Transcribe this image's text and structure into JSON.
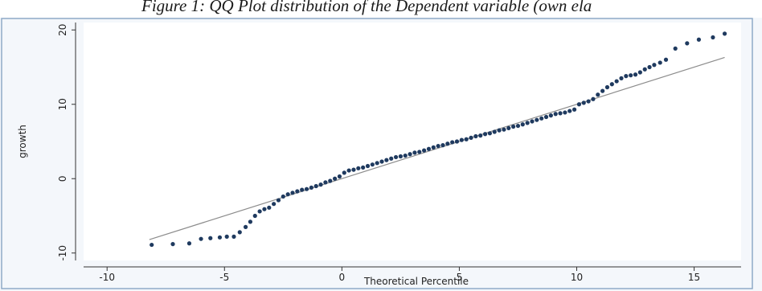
{
  "caption": "Figure 1: QQ Plot distribution of the Dependent variable (own ela",
  "chart_data": {
    "type": "scatter",
    "title": "",
    "xlabel": "Theoretical Percentile",
    "ylabel": "growth",
    "xlim": [
      -11,
      17
    ],
    "ylim": [
      -11,
      21
    ],
    "xticks": [
      -10,
      -5,
      0,
      5,
      10,
      15
    ],
    "yticks": [
      -10,
      0,
      10,
      20
    ],
    "grid": false,
    "colors": {
      "points": "#1f3a5f",
      "reference_line": "#8c8c8c",
      "axes": "#333333",
      "panel_border": "#8faac8",
      "plot_bg": "#ffffff"
    },
    "reference_line": {
      "from": [
        -8.2,
        -8.2
      ],
      "to": [
        16.3,
        16.3
      ]
    },
    "series": [
      {
        "points": [
          [
            -8.1,
            -8.9
          ],
          [
            -7.2,
            -8.8
          ],
          [
            -6.5,
            -8.7
          ],
          [
            -6.0,
            -8.1
          ],
          [
            -5.6,
            -8.0
          ],
          [
            -5.2,
            -7.9
          ],
          [
            -4.9,
            -7.8
          ],
          [
            -4.6,
            -7.8
          ],
          [
            -4.35,
            -7.2
          ],
          [
            -4.1,
            -6.5
          ],
          [
            -3.9,
            -5.8
          ],
          [
            -3.7,
            -5.0
          ],
          [
            -3.5,
            -4.4
          ],
          [
            -3.3,
            -4.1
          ],
          [
            -3.1,
            -3.9
          ],
          [
            -2.9,
            -3.4
          ],
          [
            -2.7,
            -2.9
          ],
          [
            -2.5,
            -2.4
          ],
          [
            -2.3,
            -2.1
          ],
          [
            -2.1,
            -1.9
          ],
          [
            -1.9,
            -1.7
          ],
          [
            -1.7,
            -1.5
          ],
          [
            -1.5,
            -1.4
          ],
          [
            -1.3,
            -1.2
          ],
          [
            -1.1,
            -1.0
          ],
          [
            -0.9,
            -0.8
          ],
          [
            -0.7,
            -0.5
          ],
          [
            -0.5,
            -0.3
          ],
          [
            -0.3,
            0.0
          ],
          [
            -0.1,
            0.3
          ],
          [
            0.1,
            0.8
          ],
          [
            0.3,
            1.1
          ],
          [
            0.5,
            1.2
          ],
          [
            0.7,
            1.4
          ],
          [
            0.9,
            1.5
          ],
          [
            1.1,
            1.7
          ],
          [
            1.3,
            1.9
          ],
          [
            1.5,
            2.1
          ],
          [
            1.7,
            2.3
          ],
          [
            1.9,
            2.5
          ],
          [
            2.1,
            2.7
          ],
          [
            2.3,
            2.9
          ],
          [
            2.5,
            3.0
          ],
          [
            2.7,
            3.1
          ],
          [
            2.9,
            3.3
          ],
          [
            3.1,
            3.5
          ],
          [
            3.3,
            3.6
          ],
          [
            3.5,
            3.8
          ],
          [
            3.7,
            4.0
          ],
          [
            3.9,
            4.2
          ],
          [
            4.1,
            4.4
          ],
          [
            4.3,
            4.5
          ],
          [
            4.5,
            4.7
          ],
          [
            4.7,
            4.9
          ],
          [
            4.9,
            5.0
          ],
          [
            5.1,
            5.2
          ],
          [
            5.3,
            5.3
          ],
          [
            5.5,
            5.5
          ],
          [
            5.7,
            5.7
          ],
          [
            5.9,
            5.8
          ],
          [
            6.1,
            6.0
          ],
          [
            6.3,
            6.1
          ],
          [
            6.5,
            6.3
          ],
          [
            6.7,
            6.5
          ],
          [
            6.9,
            6.6
          ],
          [
            7.1,
            6.8
          ],
          [
            7.3,
            7.0
          ],
          [
            7.5,
            7.1
          ],
          [
            7.7,
            7.3
          ],
          [
            7.9,
            7.5
          ],
          [
            8.1,
            7.7
          ],
          [
            8.3,
            7.9
          ],
          [
            8.5,
            8.1
          ],
          [
            8.7,
            8.3
          ],
          [
            8.9,
            8.5
          ],
          [
            9.1,
            8.7
          ],
          [
            9.3,
            8.8
          ],
          [
            9.5,
            8.9
          ],
          [
            9.7,
            9.1
          ],
          [
            9.9,
            9.3
          ],
          [
            10.1,
            10.0
          ],
          [
            10.3,
            10.2
          ],
          [
            10.5,
            10.4
          ],
          [
            10.7,
            10.7
          ],
          [
            10.9,
            11.3
          ],
          [
            11.1,
            11.8
          ],
          [
            11.3,
            12.3
          ],
          [
            11.5,
            12.7
          ],
          [
            11.7,
            13.1
          ],
          [
            11.9,
            13.5
          ],
          [
            12.1,
            13.8
          ],
          [
            12.3,
            13.9
          ],
          [
            12.5,
            14.0
          ],
          [
            12.7,
            14.3
          ],
          [
            12.9,
            14.7
          ],
          [
            13.1,
            15.0
          ],
          [
            13.3,
            15.3
          ],
          [
            13.55,
            15.6
          ],
          [
            13.8,
            16.0
          ],
          [
            14.2,
            17.5
          ],
          [
            14.7,
            18.2
          ],
          [
            15.2,
            18.7
          ],
          [
            15.8,
            19.0
          ],
          [
            16.3,
            19.5
          ]
        ]
      }
    ]
  }
}
